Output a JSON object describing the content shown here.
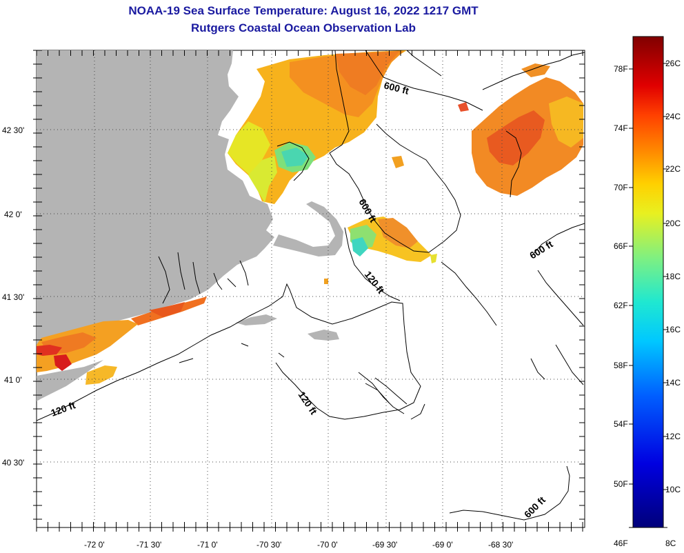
{
  "title": {
    "line1": "NOAA-19 Sea Surface Temperature:  August 16, 2022 1217 GMT",
    "line2": "Rutgers Coastal Ocean Observation Lab"
  },
  "map": {
    "lat_labels": [
      "42 30'",
      "42 0'",
      "41 30'",
      "41 0'",
      "40 30'"
    ],
    "lon_labels": [
      "-72 0'",
      "-71 30'",
      "-71 0'",
      "-70 30'",
      "-70 0'",
      "-69 30'",
      "-69 0'",
      "-68 30'"
    ],
    "contour_labels": [
      "600 ft",
      "600 ft",
      "600 ft",
      "600 ft",
      "120 ft",
      "120 ft",
      "120 ft"
    ],
    "land_color": "#b4b4b4"
  },
  "colorbar": {
    "fahrenheit_labels": [
      "78F",
      "74F",
      "70F",
      "66F",
      "62F",
      "58F",
      "54F",
      "50F",
      "46F"
    ],
    "celsius_labels": [
      "26C",
      "24C",
      "22C",
      "20C",
      "18C",
      "16C",
      "14C",
      "12C",
      "10C",
      "8C"
    ],
    "range_c": [
      8,
      27
    ]
  }
}
